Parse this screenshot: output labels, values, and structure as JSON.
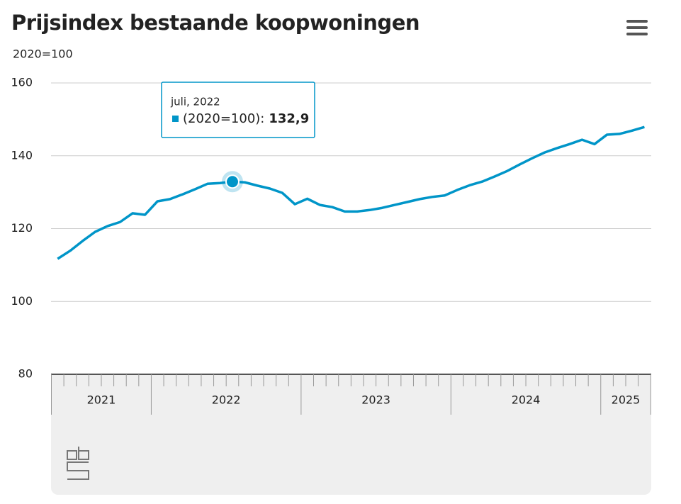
{
  "chart_data": {
    "type": "line",
    "title": "Prijsindex bestaande koopwoningen",
    "y_label": "2020=100",
    "categories": [
      null,
      null,
      null,
      null,
      null,
      null,
      null,
      null,
      null,
      null,
      null,
      null,
      null,
      null,
      null,
      null,
      null,
      null,
      null,
      null,
      null,
      null,
      null,
      null,
      null,
      null,
      null,
      null,
      null,
      null,
      null,
      null,
      null,
      null,
      null,
      null,
      null,
      null,
      null,
      null,
      null,
      null,
      null,
      null,
      null,
      null,
      null,
      null
    ],
    "year_labels": [
      "2021",
      "2022",
      "2023",
      "2024",
      "2025"
    ],
    "series": [
      {
        "name": "(2020=100):",
        "color": "#0095c8",
        "values": [
          111.7,
          113.9,
          116.6,
          119.1,
          120.7,
          121.8,
          124.2,
          123.8,
          127.5,
          128.1,
          129.4,
          130.8,
          132.3,
          132.5,
          132.9,
          132.7,
          131.8,
          131.0,
          129.8,
          126.7,
          128.2,
          126.5,
          125.9,
          124.7,
          124.7,
          125.1,
          125.7,
          126.5,
          127.3,
          128.1,
          128.7,
          129.1,
          130.6,
          131.9,
          132.9,
          134.3,
          135.8,
          137.6,
          139.3,
          140.9,
          142.1,
          143.2,
          144.4,
          143.2,
          145.8,
          146.0,
          146.9,
          147.9
        ]
      }
    ],
    "ylim": [
      80,
      160
    ],
    "yticks": [
      80,
      100,
      120,
      140,
      160
    ],
    "grid": true,
    "tooltip": {
      "title": "juli, 2022",
      "value": "132,9"
    }
  }
}
